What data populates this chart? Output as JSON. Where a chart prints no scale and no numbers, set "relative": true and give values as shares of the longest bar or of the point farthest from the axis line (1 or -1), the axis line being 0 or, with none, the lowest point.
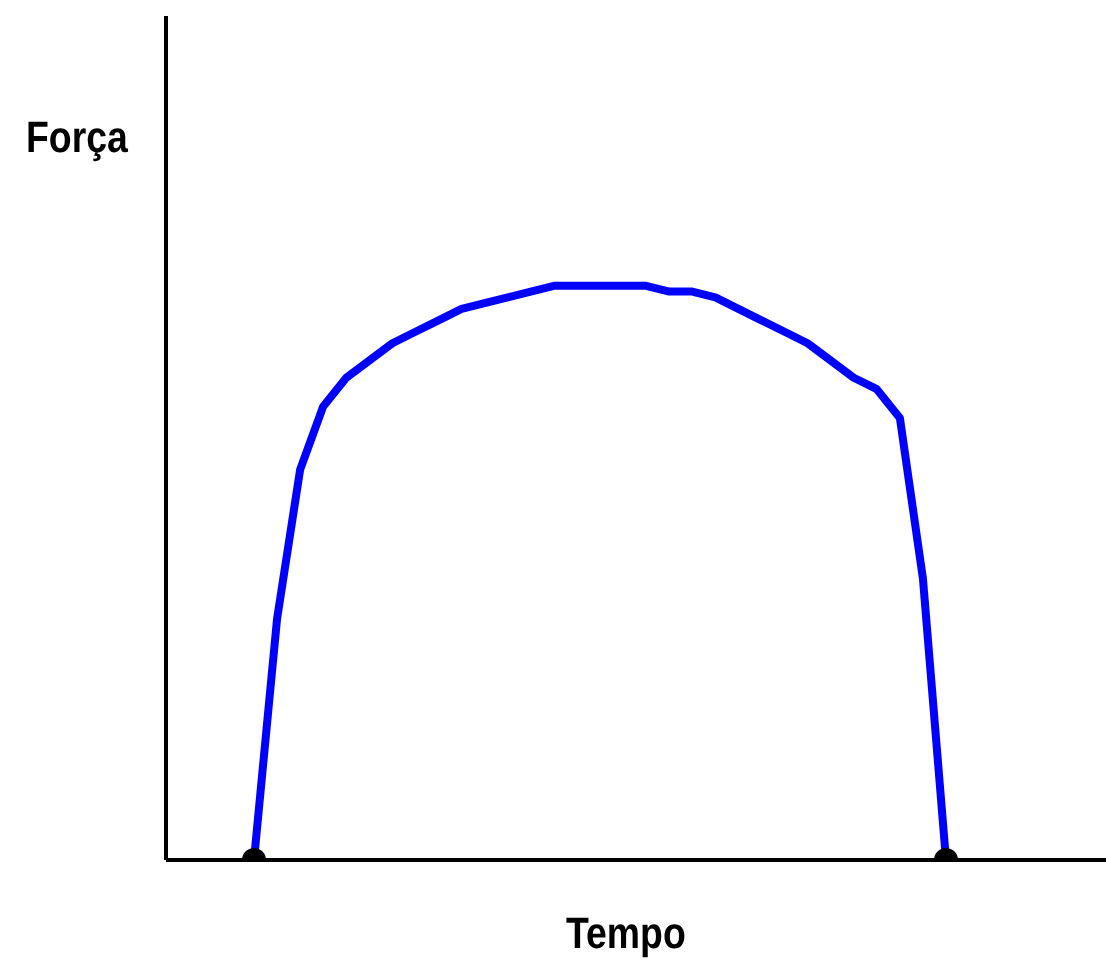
{
  "chart_data": {
    "type": "line",
    "relative": true,
    "xlabel": "Tempo",
    "ylabel": "Força",
    "categories": [
      null,
      null,
      null,
      null,
      null,
      null,
      null,
      null,
      null,
      null,
      null,
      null,
      null,
      null,
      null,
      null,
      null,
      null,
      null,
      null,
      null,
      null,
      null,
      null,
      null,
      null,
      null,
      null,
      null,
      null,
      null
    ],
    "series": [
      {
        "color": "#0000ff",
        "values": [
          0,
          0.42,
          0.68,
          0.79,
          0.84,
          0.87,
          0.9,
          0.92,
          0.94,
          0.96,
          0.97,
          0.98,
          0.99,
          1,
          1,
          1,
          1,
          1,
          0.99,
          0.99,
          0.98,
          0.96,
          0.94,
          0.92,
          0.9,
          0.87,
          0.84,
          0.82,
          0.77,
          0.49,
          0
        ]
      }
    ]
  }
}
